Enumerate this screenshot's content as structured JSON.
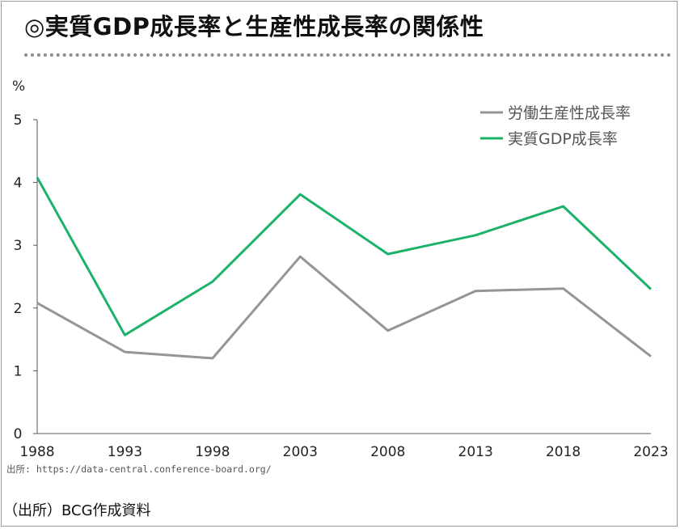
{
  "title": "◎実質GDP成長率と生産性成長率の関係性",
  "source_small": "出所: https://data-central.conference-board.org/",
  "source_big": "（出所）BCG作成資料",
  "colors": {
    "labor_productivity": "#959595",
    "real_gdp": "#1db26a",
    "axis": "#555555"
  },
  "chart_data": {
    "type": "line",
    "title": "◎実質GDP成長率と生産性成長率の関係性",
    "xlabel": "",
    "ylabel": "%",
    "ylim": [
      0,
      5
    ],
    "yticks": [
      "0",
      "1",
      "2",
      "3",
      "4",
      "5"
    ],
    "categories": [
      "1988",
      "1993",
      "1998",
      "2003",
      "2008",
      "2013",
      "2018",
      "2023"
    ],
    "series": [
      {
        "name": "労働生産性成長率",
        "color": "#959595",
        "values": [
          2.08,
          1.3,
          1.2,
          2.82,
          1.64,
          2.27,
          2.31,
          1.23
        ]
      },
      {
        "name": "実質GDP成長率",
        "color": "#1db26a",
        "values": [
          4.08,
          1.57,
          2.42,
          3.81,
          2.86,
          3.16,
          3.62,
          2.3
        ]
      }
    ],
    "grid": false,
    "legend": "top-right"
  }
}
